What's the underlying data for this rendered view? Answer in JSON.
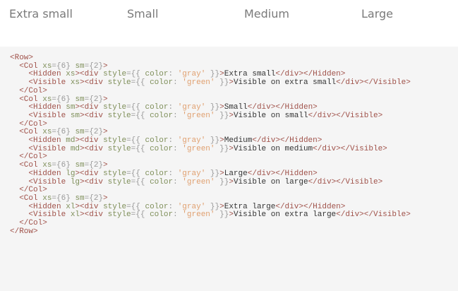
{
  "demo": {
    "labels": [
      "Extra small",
      "Small",
      "Medium",
      "Large"
    ]
  },
  "code": {
    "lines": [
      [
        [
          "t",
          "<Row>"
        ]
      ],
      [
        [
          "x",
          "  "
        ],
        [
          "t",
          "<Col"
        ],
        [
          "x",
          " "
        ],
        [
          "a",
          "xs"
        ],
        [
          "p",
          "={6}"
        ],
        [
          "x",
          " "
        ],
        [
          "a",
          "sm"
        ],
        [
          "p",
          "={2}"
        ],
        [
          "t",
          ">"
        ]
      ],
      [
        [
          "x",
          "    "
        ],
        [
          "t",
          "<Hidden"
        ],
        [
          "x",
          " "
        ],
        [
          "a",
          "xs"
        ],
        [
          "t",
          "><div"
        ],
        [
          "x",
          " "
        ],
        [
          "a",
          "style"
        ],
        [
          "p",
          "={{ "
        ],
        [
          "a",
          "color"
        ],
        [
          "p",
          ": "
        ],
        [
          "s",
          "'gray'"
        ],
        [
          "p",
          " }}"
        ],
        [
          "t",
          ">"
        ],
        [
          "x",
          "Extra small"
        ],
        [
          "t",
          "</div></Hidden>"
        ]
      ],
      [
        [
          "x",
          "    "
        ],
        [
          "t",
          "<Visible"
        ],
        [
          "x",
          " "
        ],
        [
          "a",
          "xs"
        ],
        [
          "t",
          "><div"
        ],
        [
          "x",
          " "
        ],
        [
          "a",
          "style"
        ],
        [
          "p",
          "={{ "
        ],
        [
          "a",
          "color"
        ],
        [
          "p",
          ": "
        ],
        [
          "s",
          "'green'"
        ],
        [
          "p",
          " }}"
        ],
        [
          "t",
          ">"
        ],
        [
          "x",
          "Visible on extra small"
        ],
        [
          "t",
          "</div></Visible>"
        ]
      ],
      [
        [
          "x",
          "  "
        ],
        [
          "t",
          "</Col>"
        ]
      ],
      [
        [
          "x",
          "  "
        ],
        [
          "t",
          "<Col"
        ],
        [
          "x",
          " "
        ],
        [
          "a",
          "xs"
        ],
        [
          "p",
          "={6}"
        ],
        [
          "x",
          " "
        ],
        [
          "a",
          "sm"
        ],
        [
          "p",
          "={2}"
        ],
        [
          "t",
          ">"
        ]
      ],
      [
        [
          "x",
          "    "
        ],
        [
          "t",
          "<Hidden"
        ],
        [
          "x",
          " "
        ],
        [
          "a",
          "sm"
        ],
        [
          "t",
          "><div"
        ],
        [
          "x",
          " "
        ],
        [
          "a",
          "style"
        ],
        [
          "p",
          "={{ "
        ],
        [
          "a",
          "color"
        ],
        [
          "p",
          ": "
        ],
        [
          "s",
          "'gray'"
        ],
        [
          "p",
          " }}"
        ],
        [
          "t",
          ">"
        ],
        [
          "x",
          "Small"
        ],
        [
          "t",
          "</div></Hidden>"
        ]
      ],
      [
        [
          "x",
          "    "
        ],
        [
          "t",
          "<Visible"
        ],
        [
          "x",
          " "
        ],
        [
          "a",
          "sm"
        ],
        [
          "t",
          "><div"
        ],
        [
          "x",
          " "
        ],
        [
          "a",
          "style"
        ],
        [
          "p",
          "={{ "
        ],
        [
          "a",
          "color"
        ],
        [
          "p",
          ": "
        ],
        [
          "s",
          "'green'"
        ],
        [
          "p",
          " }}"
        ],
        [
          "t",
          ">"
        ],
        [
          "x",
          "Visible on small"
        ],
        [
          "t",
          "</div></Visible>"
        ]
      ],
      [
        [
          "x",
          "  "
        ],
        [
          "t",
          "</Col>"
        ]
      ],
      [
        [
          "x",
          "  "
        ],
        [
          "t",
          "<Col"
        ],
        [
          "x",
          " "
        ],
        [
          "a",
          "xs"
        ],
        [
          "p",
          "={6}"
        ],
        [
          "x",
          " "
        ],
        [
          "a",
          "sm"
        ],
        [
          "p",
          "={2}"
        ],
        [
          "t",
          ">"
        ]
      ],
      [
        [
          "x",
          "    "
        ],
        [
          "t",
          "<Hidden"
        ],
        [
          "x",
          " "
        ],
        [
          "a",
          "md"
        ],
        [
          "t",
          "><div"
        ],
        [
          "x",
          " "
        ],
        [
          "a",
          "style"
        ],
        [
          "p",
          "={{ "
        ],
        [
          "a",
          "color"
        ],
        [
          "p",
          ": "
        ],
        [
          "s",
          "'gray'"
        ],
        [
          "p",
          " }}"
        ],
        [
          "t",
          ">"
        ],
        [
          "x",
          "Medium"
        ],
        [
          "t",
          "</div></Hidden>"
        ]
      ],
      [
        [
          "x",
          "    "
        ],
        [
          "t",
          "<Visible"
        ],
        [
          "x",
          " "
        ],
        [
          "a",
          "md"
        ],
        [
          "t",
          "><div"
        ],
        [
          "x",
          " "
        ],
        [
          "a",
          "style"
        ],
        [
          "p",
          "={{ "
        ],
        [
          "a",
          "color"
        ],
        [
          "p",
          ": "
        ],
        [
          "s",
          "'green'"
        ],
        [
          "p",
          " }}"
        ],
        [
          "t",
          ">"
        ],
        [
          "x",
          "Visible on medium"
        ],
        [
          "t",
          "</div></Visible>"
        ]
      ],
      [
        [
          "x",
          "  "
        ],
        [
          "t",
          "</Col>"
        ]
      ],
      [
        [
          "x",
          "  "
        ],
        [
          "t",
          "<Col"
        ],
        [
          "x",
          " "
        ],
        [
          "a",
          "xs"
        ],
        [
          "p",
          "={6}"
        ],
        [
          "x",
          " "
        ],
        [
          "a",
          "sm"
        ],
        [
          "p",
          "={2}"
        ],
        [
          "t",
          ">"
        ]
      ],
      [
        [
          "x",
          "    "
        ],
        [
          "t",
          "<Hidden"
        ],
        [
          "x",
          " "
        ],
        [
          "a",
          "lg"
        ],
        [
          "t",
          "><div"
        ],
        [
          "x",
          " "
        ],
        [
          "a",
          "style"
        ],
        [
          "p",
          "={{ "
        ],
        [
          "a",
          "color"
        ],
        [
          "p",
          ": "
        ],
        [
          "s",
          "'gray'"
        ],
        [
          "p",
          " }}"
        ],
        [
          "t",
          ">"
        ],
        [
          "x",
          "Large"
        ],
        [
          "t",
          "</div></Hidden>"
        ]
      ],
      [
        [
          "x",
          "    "
        ],
        [
          "t",
          "<Visible"
        ],
        [
          "x",
          " "
        ],
        [
          "a",
          "lg"
        ],
        [
          "t",
          "><div"
        ],
        [
          "x",
          " "
        ],
        [
          "a",
          "style"
        ],
        [
          "p",
          "={{ "
        ],
        [
          "a",
          "color"
        ],
        [
          "p",
          ": "
        ],
        [
          "s",
          "'green'"
        ],
        [
          "p",
          " }}"
        ],
        [
          "t",
          ">"
        ],
        [
          "x",
          "Visible on large"
        ],
        [
          "t",
          "</div></Visible>"
        ]
      ],
      [
        [
          "x",
          "  "
        ],
        [
          "t",
          "</Col>"
        ]
      ],
      [
        [
          "x",
          "  "
        ],
        [
          "t",
          "<Col"
        ],
        [
          "x",
          " "
        ],
        [
          "a",
          "xs"
        ],
        [
          "p",
          "={6}"
        ],
        [
          "x",
          " "
        ],
        [
          "a",
          "sm"
        ],
        [
          "p",
          "={2}"
        ],
        [
          "t",
          ">"
        ]
      ],
      [
        [
          "x",
          "    "
        ],
        [
          "t",
          "<Hidden"
        ],
        [
          "x",
          " "
        ],
        [
          "a",
          "xl"
        ],
        [
          "t",
          "><div"
        ],
        [
          "x",
          " "
        ],
        [
          "a",
          "style"
        ],
        [
          "p",
          "={{ "
        ],
        [
          "a",
          "color"
        ],
        [
          "p",
          ": "
        ],
        [
          "s",
          "'gray'"
        ],
        [
          "p",
          " }}"
        ],
        [
          "t",
          ">"
        ],
        [
          "x",
          "Extra large"
        ],
        [
          "t",
          "</div></Hidden>"
        ]
      ],
      [
        [
          "x",
          "    "
        ],
        [
          "t",
          "<Visible"
        ],
        [
          "x",
          " "
        ],
        [
          "a",
          "xl"
        ],
        [
          "t",
          "><div"
        ],
        [
          "x",
          " "
        ],
        [
          "a",
          "style"
        ],
        [
          "p",
          "={{ "
        ],
        [
          "a",
          "color"
        ],
        [
          "p",
          ": "
        ],
        [
          "s",
          "'green'"
        ],
        [
          "p",
          " }}"
        ],
        [
          "t",
          ">"
        ],
        [
          "x",
          "Visible on extra large"
        ],
        [
          "t",
          "</div></Visible>"
        ]
      ],
      [
        [
          "x",
          "  "
        ],
        [
          "t",
          "</Col>"
        ]
      ],
      [
        [
          "t",
          "</Row>"
        ]
      ]
    ]
  }
}
